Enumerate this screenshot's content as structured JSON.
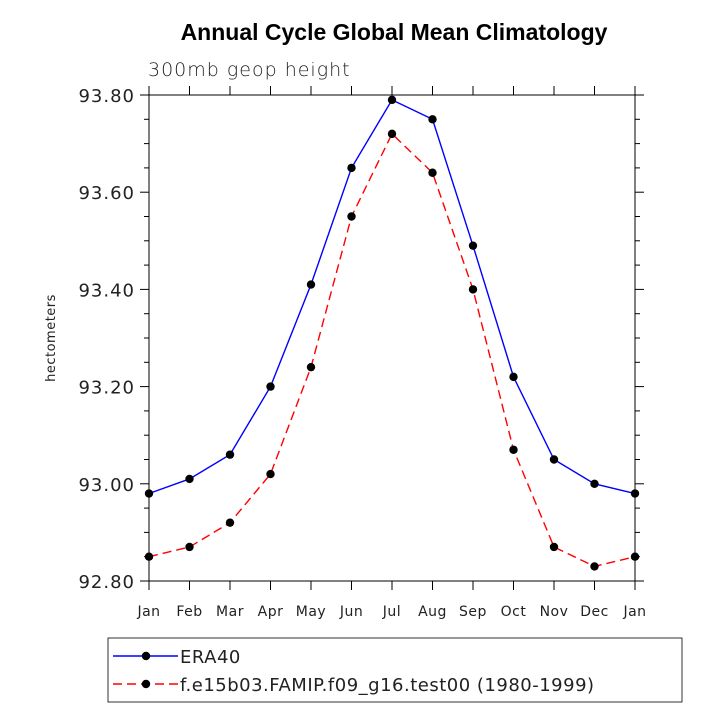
{
  "chart_data": {
    "type": "line",
    "title": "Annual Cycle Global Mean Climatology",
    "subtitle": "300mb geop height",
    "xlabel": "",
    "ylabel": "hectometers",
    "ylim": [
      92.8,
      93.8
    ],
    "yticks": [
      "92.80",
      "93.00",
      "93.20",
      "93.40",
      "93.60",
      "93.80"
    ],
    "yticks_values": [
      92.8,
      93.0,
      93.2,
      93.4,
      93.6,
      93.8
    ],
    "categories": [
      "Jan",
      "Feb",
      "Mar",
      "Apr",
      "May",
      "Jun",
      "Jul",
      "Aug",
      "Sep",
      "Oct",
      "Nov",
      "Dec",
      "Jan"
    ],
    "legend_position": "bottom",
    "series": [
      {
        "name": "ERA40",
        "color": "#0000ff",
        "dash": "solid",
        "values": [
          92.98,
          93.01,
          93.06,
          93.2,
          93.41,
          93.65,
          93.79,
          93.75,
          93.49,
          93.22,
          93.05,
          93.0,
          92.98
        ]
      },
      {
        "name": "f.e15b03.FAMIP.f09_g16.test00 (1980-1999)",
        "color": "#ff0000",
        "dash": "dashed",
        "values": [
          92.85,
          92.87,
          92.92,
          93.02,
          93.24,
          93.55,
          93.72,
          93.64,
          93.4,
          93.07,
          92.87,
          92.83,
          92.85
        ]
      }
    ]
  }
}
